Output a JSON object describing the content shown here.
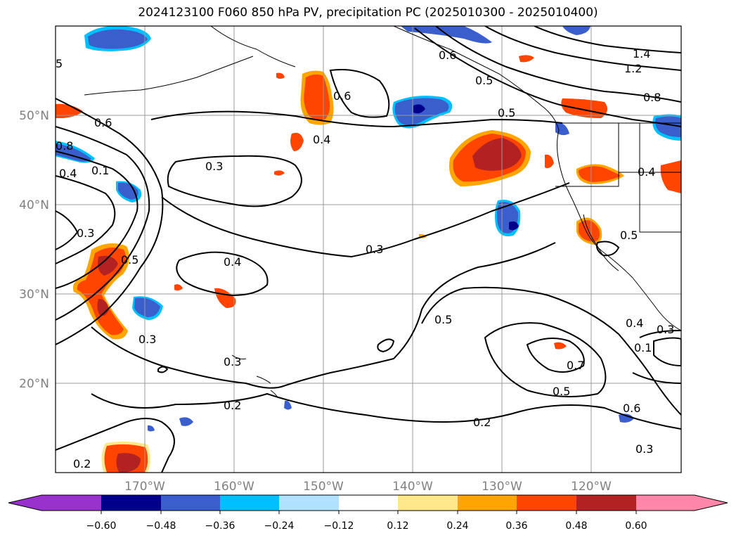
{
  "title": "2024123100 F060 850 hPa PV, precipitation PC (2025010300 - 2025010400)",
  "map": {
    "lon_range": [
      -180,
      -110
    ],
    "lat_range": [
      10,
      60
    ],
    "lon_ticks": [
      "170°W",
      "160°W",
      "150°W",
      "140°W",
      "130°W",
      "120°W"
    ],
    "lat_ticks": [
      "50°N",
      "40°N",
      "30°N",
      "20°N"
    ],
    "grid": true,
    "contour_labels": [
      "5",
      "0.6",
      "0.8",
      "0.4",
      "0.1",
      "0.3",
      "0.5",
      "0.3",
      "0.6",
      "0.4",
      "0.3",
      "0.4",
      "0.5",
      "0.3",
      "0.2",
      "0.2",
      "0.3",
      "0.5",
      "0.7",
      "0.5",
      "0.6",
      "0.3",
      "0.2",
      "1.4",
      "1.2",
      "0.8",
      "0.6",
      "0.5",
      "0.4",
      "0.4",
      "0.5",
      "0.3",
      "0.1"
    ]
  },
  "colorbar": {
    "ticks": [
      "−0.60",
      "−0.48",
      "−0.36",
      "−0.24",
      "−0.12",
      "0.12",
      "0.24",
      "0.36",
      "0.48",
      "0.60"
    ],
    "colors": [
      "#9932cc",
      "#00008b",
      "#3a5fcd",
      "#00bfff",
      "#b0e2ff",
      "#ffffff",
      "#ffe88c",
      "#ffa500",
      "#ff4500",
      "#b22222",
      "#ff88aa"
    ]
  }
}
